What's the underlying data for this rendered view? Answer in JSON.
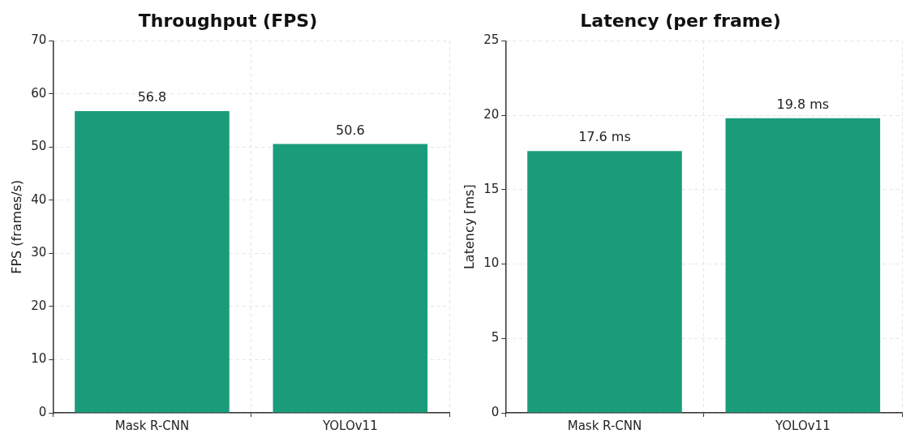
{
  "chart_data": [
    {
      "type": "bar",
      "title": "Throughput (FPS)",
      "ylabel": "FPS (frames/s)",
      "categories": [
        "Mask R-CNN",
        "YOLOv11"
      ],
      "values": [
        56.8,
        50.6
      ],
      "color": "#1a9c7b",
      "ylim": [
        0,
        70
      ],
      "yticks": [
        0,
        10,
        20,
        30,
        40,
        50,
        60,
        70
      ],
      "grid": true,
      "data_labels": true
    },
    {
      "type": "bar",
      "title": "Latency (per frame)",
      "ylabel": "Latency [ms]",
      "categories": [
        "Mask R-CNN",
        "YOLOv11"
      ],
      "values": [
        17.6,
        19.8
      ],
      "value_labels": [
        "17.6 ms",
        "19.8 ms"
      ],
      "color": "#1a9c7b",
      "ylim": [
        0,
        25
      ],
      "yticks": [
        0,
        5,
        10,
        15,
        20,
        25
      ],
      "grid": true
    }
  ]
}
